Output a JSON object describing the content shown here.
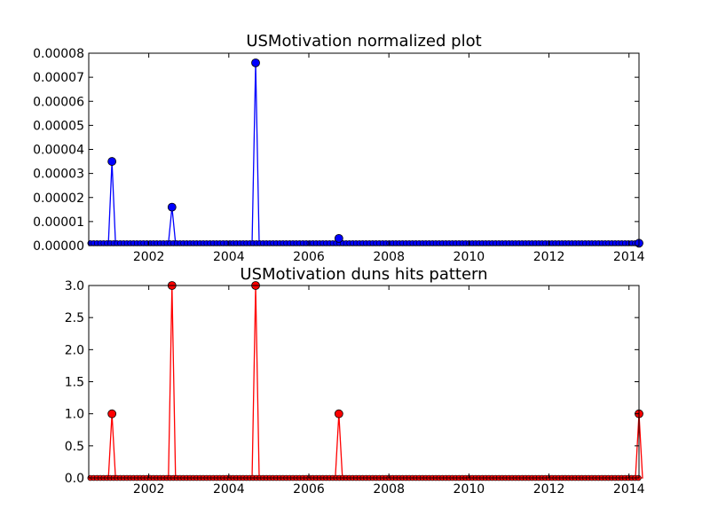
{
  "chart_data": [
    {
      "type": "line",
      "title": "USMotivation normalized plot",
      "xlabel": "",
      "ylabel": "",
      "xlim": [
        2000.5,
        2014.25
      ],
      "ylim": [
        0,
        8e-05
      ],
      "x_ticks": [
        "2002",
        "2004",
        "2006",
        "2008",
        "2010",
        "2012",
        "2014"
      ],
      "y_ticks": [
        "0.00000",
        "0.00001",
        "0.00002",
        "0.00003",
        "0.00004",
        "0.00005",
        "0.00006",
        "0.00007",
        "0.00008"
      ],
      "grid": false,
      "legend": "none",
      "color": "#0000ff",
      "baseline_value": 1e-06,
      "series": [
        {
          "x": [
            2001.08,
            2002.58,
            2004.67,
            2006.75,
            2014.25
          ],
          "values": [
            3.5e-05,
            1.6e-05,
            7.6e-05,
            3e-06,
            1e-06
          ]
        }
      ]
    },
    {
      "type": "line",
      "title": "USMotivation duns hits pattern",
      "xlabel": "",
      "ylabel": "",
      "xlim": [
        2000.5,
        2014.25
      ],
      "ylim": [
        0,
        3.0
      ],
      "x_ticks": [
        "2002",
        "2004",
        "2006",
        "2008",
        "2010",
        "2012",
        "2014"
      ],
      "y_ticks": [
        "0.0",
        "0.5",
        "1.0",
        "1.5",
        "2.0",
        "2.5",
        "3.0"
      ],
      "grid": false,
      "legend": "none",
      "color": "#ff0000",
      "baseline_value": 0,
      "series": [
        {
          "x": [
            2001.08,
            2002.58,
            2004.67,
            2006.75,
            2014.25
          ],
          "values": [
            1,
            3,
            3,
            1,
            1
          ]
        }
      ]
    }
  ]
}
